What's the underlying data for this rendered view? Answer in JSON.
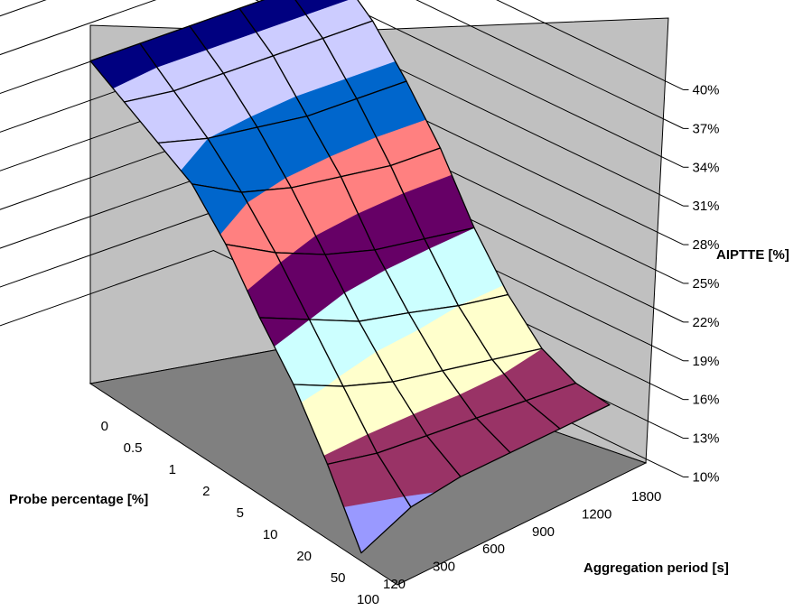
{
  "chart_data": {
    "type": "surface",
    "title": "",
    "xlabel": "Probe percentage [%]",
    "ylabel": "Aggregation period [s]",
    "zlabel": "AIPTTE [%]",
    "x": [
      "0",
      "0.5",
      "1",
      "2",
      "5",
      "10",
      "20",
      "50",
      "100"
    ],
    "y": [
      "120",
      "300",
      "600",
      "900",
      "1200",
      "1800"
    ],
    "zlim": [
      10,
      40
    ],
    "z_ticks": [
      "10%",
      "13%",
      "16%",
      "19%",
      "22%",
      "25%",
      "28%",
      "31%",
      "34%",
      "37%",
      "40%"
    ],
    "values": [
      [
        35.0,
        35.0,
        35.0,
        35.0,
        35.0,
        35.0
      ],
      [
        33.5,
        33.0,
        33.0,
        33.0,
        33.0,
        33.0
      ],
      [
        32.0,
        31.0,
        30.5,
        30.0,
        30.0,
        30.0
      ],
      [
        30.5,
        28.5,
        27.5,
        27.0,
        26.5,
        26.5
      ],
      [
        27.5,
        25.5,
        24.0,
        23.0,
        22.5,
        22.0
      ],
      [
        23.5,
        22.0,
        20.5,
        19.8,
        19.0,
        18.5
      ],
      [
        20.0,
        18.5,
        17.5,
        17.0,
        16.5,
        16.0
      ],
      [
        15.5,
        15.0,
        15.0,
        15.0,
        15.0,
        15.0
      ],
      [
        10.3,
        12.5,
        13.5,
        14.0,
        14.5,
        15.0
      ]
    ],
    "bands": [
      {
        "range": [
          10,
          13
        ],
        "color": "#9999ff"
      },
      {
        "range": [
          13,
          16
        ],
        "color": "#993366"
      },
      {
        "range": [
          16,
          19
        ],
        "color": "#ffffcc"
      },
      {
        "range": [
          19,
          22
        ],
        "color": "#ccffff"
      },
      {
        "range": [
          22,
          25
        ],
        "color": "#660066"
      },
      {
        "range": [
          25,
          28
        ],
        "color": "#ff8080"
      },
      {
        "range": [
          28,
          31
        ],
        "color": "#0066cc"
      },
      {
        "range": [
          31,
          34
        ],
        "color": "#ccccff"
      },
      {
        "range": [
          34,
          37
        ],
        "color": "#000080"
      }
    ],
    "wall_color": "#c0c0c0",
    "floor_color": "#808080",
    "grid": true,
    "legend": "none"
  }
}
